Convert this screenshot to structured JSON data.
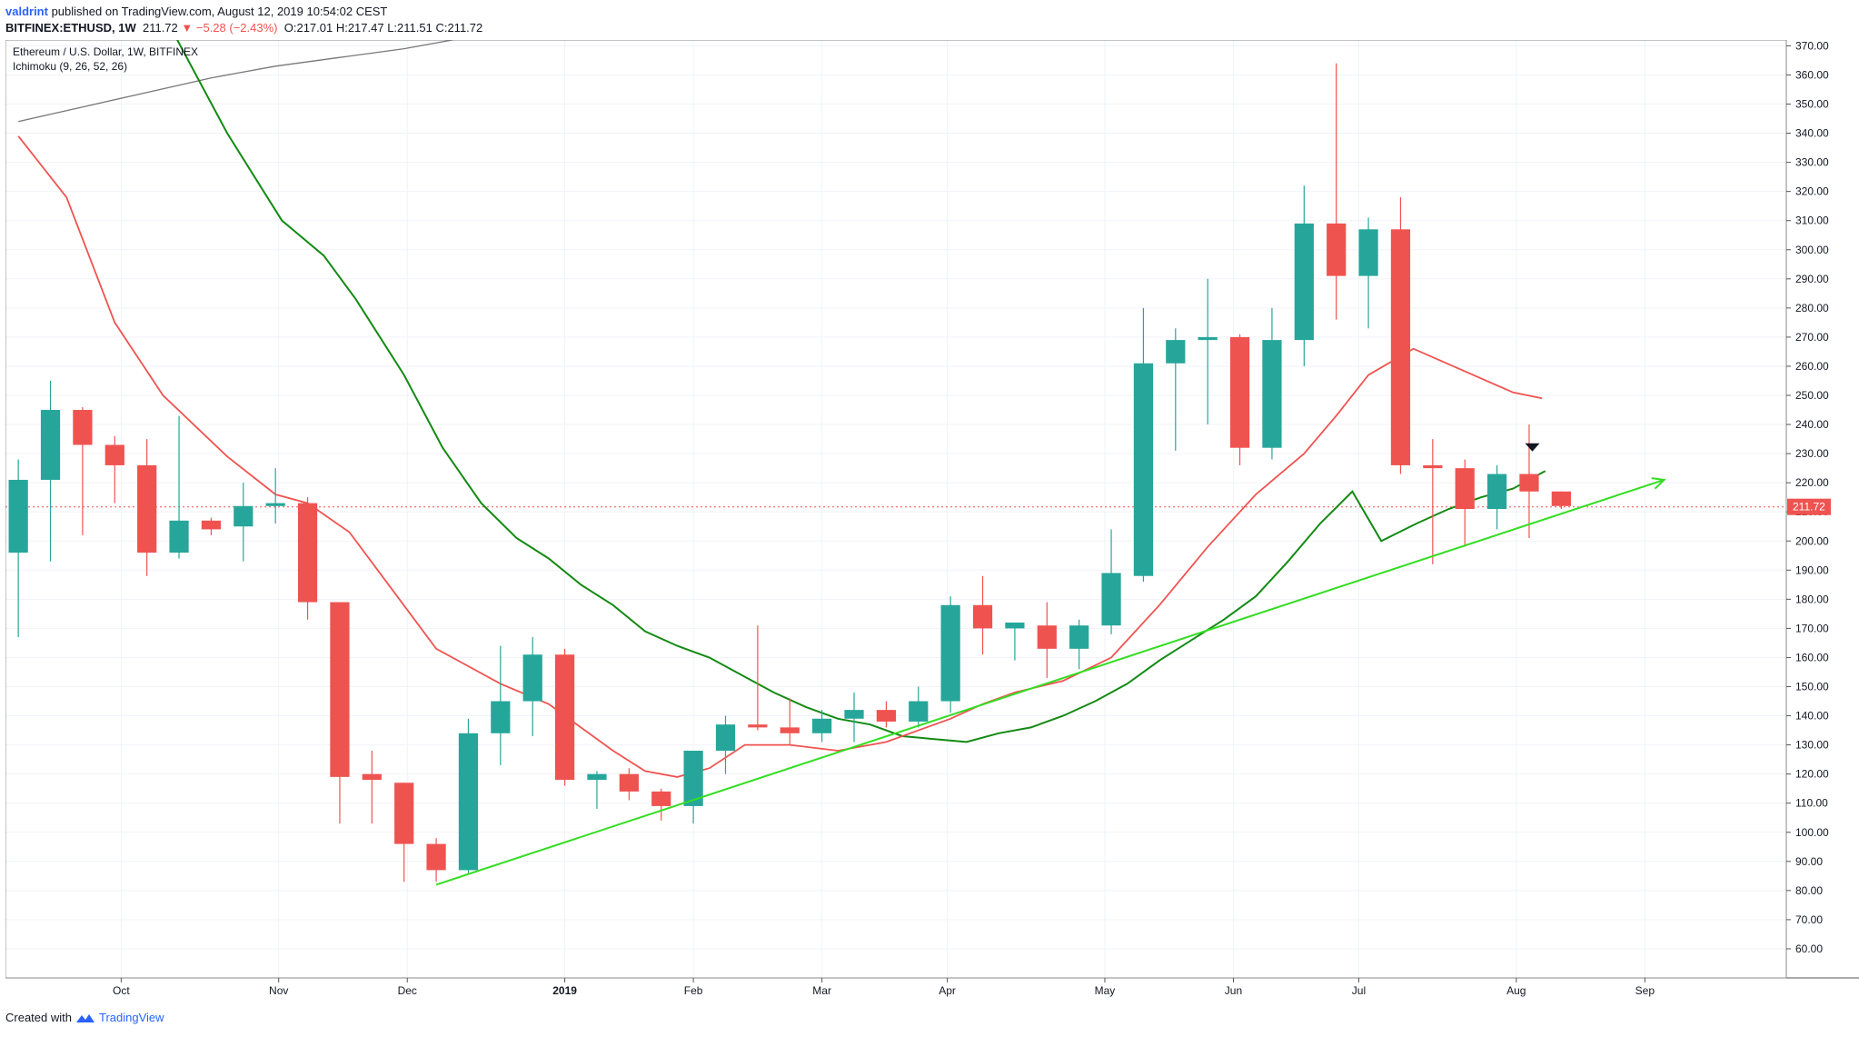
{
  "header": {
    "user": "valdrint",
    "published": " published on TradingView.com, August 12, 2019 10:54:02 CEST",
    "symbol": "BITFINEX:ETHUSD, 1W",
    "price": "211.72",
    "change": "▼ −5.28 (−2.43%)",
    "ohlc": "O:217.01 H:217.47 L:211.51 C:211.72"
  },
  "legend": {
    "title": "Ethereum / U.S. Dollar, 1W, BITFINEX",
    "indicator": "Ichimoku (9, 26, 52, 26)"
  },
  "footer": {
    "created_with": "Created with",
    "brand": "TradingView"
  },
  "colors": {
    "up": "#26a69a",
    "down": "#ef5350",
    "tenkan": "#ef5350",
    "kijun": "#138a13",
    "span": "#777777",
    "trend": "#33dd22"
  },
  "chart_data": {
    "type": "candlestick",
    "ylim": [
      50,
      372
    ],
    "yticks": [
      60,
      70,
      80,
      90,
      100,
      110,
      120,
      130,
      140,
      150,
      160,
      170,
      180,
      190,
      200,
      210,
      220,
      230,
      240,
      250,
      260,
      270,
      280,
      290,
      300,
      310,
      320,
      330,
      340,
      350,
      360,
      370
    ],
    "ytick_labels": [
      "60.00",
      "70.00",
      "80.00",
      "90.00",
      "100.00",
      "110.00",
      "120.00",
      "130.00",
      "140.00",
      "150.00",
      "160.00",
      "170.00",
      "180.00",
      "190.00",
      "200.00",
      "210.00",
      "220.00",
      "230.00",
      "240.00",
      "250.00",
      "260.00",
      "270.00",
      "280.00",
      "290.00",
      "300.00",
      "310.00",
      "320.00",
      "330.00",
      "340.00",
      "350.00",
      "360.00",
      "370.00"
    ],
    "xlim": [
      -0.4,
      55
    ],
    "xticks": [
      {
        "label": "Oct",
        "x": 3.2
      },
      {
        "label": "Nov",
        "x": 8.1
      },
      {
        "label": "Dec",
        "x": 12.1
      },
      {
        "label": "2019",
        "x": 17.0
      },
      {
        "label": "Feb",
        "x": 21.0
      },
      {
        "label": "Mar",
        "x": 25.0
      },
      {
        "label": "Apr",
        "x": 28.9
      },
      {
        "label": "May",
        "x": 33.8
      },
      {
        "label": "Jun",
        "x": 37.8
      },
      {
        "label": "Jul",
        "x": 41.7
      },
      {
        "label": "Aug",
        "x": 46.6
      },
      {
        "label": "Sep",
        "x": 50.6
      }
    ],
    "candles": [
      {
        "o": 196,
        "h": 228,
        "l": 167,
        "c": 221
      },
      {
        "o": 221,
        "h": 255,
        "l": 193,
        "c": 245
      },
      {
        "o": 245,
        "h": 246,
        "l": 202,
        "c": 233
      },
      {
        "o": 233,
        "h": 236,
        "l": 213,
        "c": 226
      },
      {
        "o": 226,
        "h": 235,
        "l": 188,
        "c": 196
      },
      {
        "o": 196,
        "h": 243,
        "l": 194,
        "c": 207
      },
      {
        "o": 207,
        "h": 208,
        "l": 202,
        "c": 204
      },
      {
        "o": 205,
        "h": 220,
        "l": 193,
        "c": 212
      },
      {
        "o": 212,
        "h": 225,
        "l": 206,
        "c": 213
      },
      {
        "o": 213,
        "h": 215,
        "l": 173,
        "c": 179
      },
      {
        "o": 179,
        "h": 179,
        "l": 103,
        "c": 119
      },
      {
        "o": 120,
        "h": 128,
        "l": 103,
        "c": 118
      },
      {
        "o": 117,
        "h": 117,
        "l": 83,
        "c": 96
      },
      {
        "o": 96,
        "h": 98,
        "l": 83,
        "c": 87
      },
      {
        "o": 87,
        "h": 139,
        "l": 86,
        "c": 134
      },
      {
        "o": 134,
        "h": 164,
        "l": 123,
        "c": 145
      },
      {
        "o": 145,
        "h": 167,
        "l": 133,
        "c": 161
      },
      {
        "o": 161,
        "h": 163,
        "l": 116,
        "c": 118
      },
      {
        "o": 118,
        "h": 121,
        "l": 108,
        "c": 120
      },
      {
        "o": 120,
        "h": 122,
        "l": 111,
        "c": 114
      },
      {
        "o": 114,
        "h": 115,
        "l": 104,
        "c": 109
      },
      {
        "o": 109,
        "h": 128,
        "l": 103,
        "c": 128
      },
      {
        "o": 128,
        "h": 140,
        "l": 120,
        "c": 137
      },
      {
        "o": 137,
        "h": 171,
        "l": 135,
        "c": 136
      },
      {
        "o": 136,
        "h": 146,
        "l": 130,
        "c": 134
      },
      {
        "o": 134,
        "h": 142,
        "l": 131,
        "c": 139
      },
      {
        "o": 139,
        "h": 148,
        "l": 131,
        "c": 142
      },
      {
        "o": 142,
        "h": 145,
        "l": 136,
        "c": 138
      },
      {
        "o": 138,
        "h": 150,
        "l": 136,
        "c": 145
      },
      {
        "o": 145,
        "h": 181,
        "l": 141,
        "c": 178
      },
      {
        "o": 178,
        "h": 188,
        "l": 161,
        "c": 170
      },
      {
        "o": 170,
        "h": 172,
        "l": 159,
        "c": 172
      },
      {
        "o": 171,
        "h": 179,
        "l": 153,
        "c": 163
      },
      {
        "o": 163,
        "h": 173,
        "l": 156,
        "c": 171
      },
      {
        "o": 171,
        "h": 204,
        "l": 168,
        "c": 189
      },
      {
        "o": 188,
        "h": 280,
        "l": 186,
        "c": 261
      },
      {
        "o": 261,
        "h": 273,
        "l": 231,
        "c": 269
      },
      {
        "o": 269,
        "h": 290,
        "l": 240,
        "c": 270
      },
      {
        "o": 270,
        "h": 271,
        "l": 226,
        "c": 232
      },
      {
        "o": 232,
        "h": 280,
        "l": 228,
        "c": 269
      },
      {
        "o": 269,
        "h": 322,
        "l": 260,
        "c": 309
      },
      {
        "o": 309,
        "h": 364,
        "l": 276,
        "c": 291
      },
      {
        "o": 291,
        "h": 311,
        "l": 273,
        "c": 307
      },
      {
        "o": 307,
        "h": 318,
        "l": 223,
        "c": 226
      },
      {
        "o": 226,
        "h": 235,
        "l": 192,
        "c": 225
      },
      {
        "o": 225,
        "h": 228,
        "l": 198,
        "c": 211
      },
      {
        "o": 211,
        "h": 226,
        "l": 204,
        "c": 223
      },
      {
        "o": 223,
        "h": 240,
        "l": 201,
        "c": 217
      },
      {
        "o": 217,
        "h": 217,
        "l": 211,
        "c": 212
      }
    ],
    "tenkan": [
      [
        0,
        339
      ],
      [
        1.5,
        318
      ],
      [
        3.0,
        275
      ],
      [
        4.5,
        250
      ],
      [
        6.5,
        229
      ],
      [
        8.0,
        216
      ],
      [
        9.0,
        213
      ],
      [
        10.3,
        203
      ],
      [
        13.0,
        163
      ],
      [
        15.0,
        151
      ],
      [
        16.5,
        144
      ],
      [
        18.5,
        128
      ],
      [
        19.5,
        121
      ],
      [
        20.5,
        119
      ],
      [
        21.5,
        122
      ],
      [
        22.6,
        130
      ],
      [
        24.0,
        130
      ],
      [
        25.5,
        128
      ],
      [
        27.0,
        131
      ],
      [
        29.0,
        139
      ],
      [
        30.0,
        144
      ],
      [
        31.0,
        148
      ],
      [
        32.5,
        152
      ],
      [
        34.0,
        160
      ],
      [
        35.5,
        178
      ],
      [
        37.0,
        198
      ],
      [
        38.5,
        216
      ],
      [
        40.0,
        230
      ],
      [
        41.0,
        243
      ],
      [
        42.0,
        257
      ],
      [
        43.4,
        266
      ],
      [
        46.5,
        251
      ],
      [
        47.4,
        249
      ]
    ],
    "kijun": [
      [
        4.8,
        375
      ],
      [
        6.5,
        340
      ],
      [
        8.2,
        310
      ],
      [
        9.5,
        298
      ],
      [
        10.5,
        283
      ],
      [
        12.0,
        257
      ],
      [
        13.2,
        232
      ],
      [
        14.4,
        213
      ],
      [
        15.5,
        201
      ],
      [
        16.5,
        194
      ],
      [
        17.5,
        185
      ],
      [
        18.5,
        178
      ],
      [
        19.5,
        169
      ],
      [
        20.5,
        164
      ],
      [
        21.5,
        160
      ],
      [
        22.5,
        154
      ],
      [
        23.5,
        148
      ],
      [
        24.5,
        143
      ],
      [
        25.5,
        139
      ],
      [
        26.5,
        137
      ],
      [
        27.5,
        133
      ],
      [
        28.5,
        132
      ],
      [
        29.5,
        131
      ],
      [
        30.5,
        134
      ],
      [
        31.5,
        136
      ],
      [
        32.5,
        140
      ],
      [
        33.5,
        145
      ],
      [
        34.5,
        151
      ],
      [
        35.5,
        159
      ],
      [
        36.5,
        166
      ],
      [
        37.5,
        173
      ],
      [
        38.5,
        181
      ],
      [
        39.5,
        193
      ],
      [
        40.5,
        206
      ],
      [
        41.5,
        217
      ],
      [
        42.4,
        200
      ],
      [
        43.5,
        206
      ],
      [
        44.5,
        211
      ],
      [
        45.5,
        215
      ],
      [
        46.5,
        218
      ],
      [
        47.5,
        224
      ]
    ],
    "span_b": [
      [
        0,
        344
      ],
      [
        2.0,
        349
      ],
      [
        4.0,
        354
      ],
      [
        6.0,
        359
      ],
      [
        8.0,
        363
      ],
      [
        10.0,
        366
      ],
      [
        12.0,
        369
      ],
      [
        14.0,
        373
      ],
      [
        16.0,
        377
      ],
      [
        18.0,
        381
      ],
      [
        19.5,
        385
      ]
    ],
    "trendline": [
      [
        13.0,
        82
      ],
      [
        51.2,
        221
      ]
    ],
    "last_price": 211.72,
    "last_price_label": "211.72",
    "marker": {
      "x": 47.1,
      "y": 232
    }
  }
}
